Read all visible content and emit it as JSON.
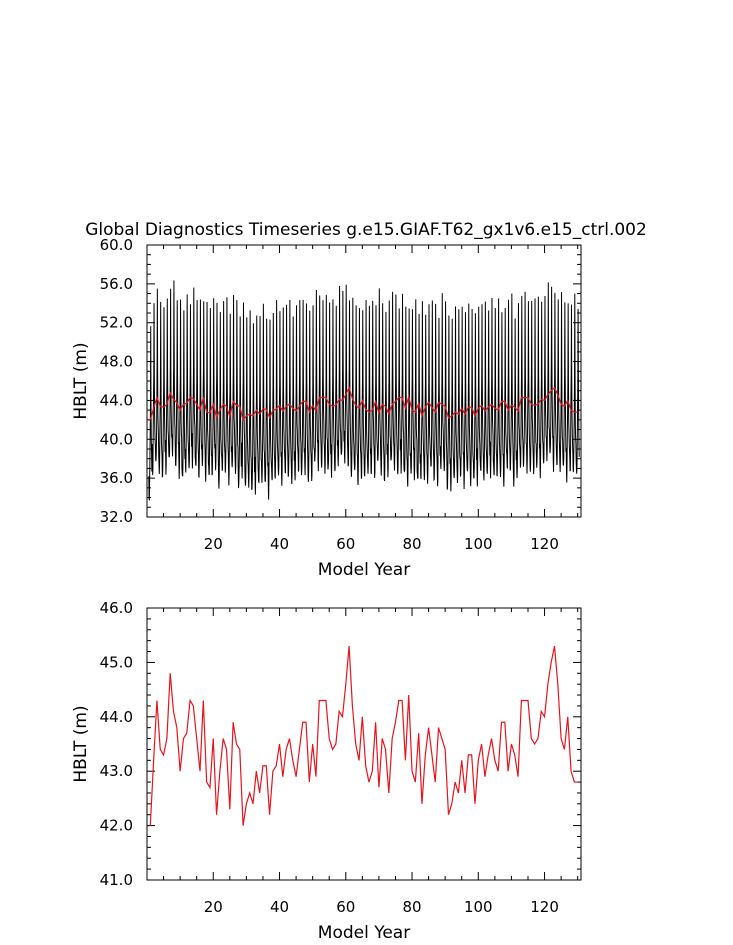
{
  "figure_title": "Global Diagnostics Timeseries g.e15.GIAF.T62_gx1v6.e15_ctrl.002",
  "colors": {
    "monthly": "#000000",
    "annual": "#e8141c",
    "axis": "#000000"
  },
  "chart_data": [
    {
      "type": "line",
      "title": "Global Diagnostics Timeseries g.e15.GIAF.T62_gx1v6.e15_ctrl.002",
      "xlabel": "Model Year",
      "ylabel": "HBLT (m)",
      "xlim": [
        0,
        131
      ],
      "ylim": [
        32.0,
        60.0
      ],
      "xticks": [
        20,
        40,
        60,
        80,
        100,
        120
      ],
      "xtick_labels": [
        "20",
        "40",
        "60",
        "80",
        "100",
        "120"
      ],
      "yticks": [
        32.0,
        36.0,
        40.0,
        44.0,
        48.0,
        52.0,
        56.0,
        60.0
      ],
      "ytick_labels": [
        "32.0",
        "36.0",
        "40.0",
        "44.0",
        "48.0",
        "52.0",
        "56.0",
        "60.0"
      ],
      "grid": false,
      "series": [
        {
          "color": "#000000",
          "style": "monthly",
          "months_per_year": 12,
          "seasonal_cycle": [
            38.0,
            36.5,
            35.8,
            36.8,
            39.5,
            42.5,
            45.5,
            53.5,
            46.0,
            41.5,
            39.8,
            38.6
          ],
          "annual_offsets": [
            -1.8,
            1.0,
            1.4,
            0.6,
            0.4,
            1.2,
            1.6,
            2.6,
            1.4,
            0.8,
            -0.4,
            1.0,
            1.2,
            1.8,
            0.8,
            0.4,
            1.6,
            0.2,
            0.0,
            0.6,
            1.4,
            -0.8,
            0.6,
            0.9,
            0.1,
            1.1,
            0.5,
            -0.8,
            1.0,
            -1.0,
            -0.8,
            -1.2,
            -0.6,
            -0.7,
            -0.3,
            -0.5,
            -1.2,
            -0.3,
            0.0,
            0.4,
            0.0,
            0.5,
            0.1,
            -0.2,
            0.3,
            0.8,
            0.3,
            1.0,
            -0.1,
            0.0,
            1.6,
            1.6,
            1.2,
            0.8,
            0.6,
            1.0,
            0.8,
            1.5,
            2.0,
            2.4,
            1.4,
            0.2,
            0.6,
            0.0,
            0.3,
            0.0,
            0.5,
            0.9,
            0.6,
            1.4,
            0.6,
            0.0,
            0.8,
            1.3,
            1.3,
            0.6,
            1.2,
            0.0,
            -0.3,
            0.7,
            0.4,
            -0.6,
            0.4,
            0.2,
            -0.2,
            0.8,
            0.2,
            -0.2,
            1.0,
            0.6,
            -0.8,
            -0.5,
            -0.2,
            -0.4,
            0.4,
            -0.1,
            0.3,
            -0.6,
            0.0,
            0.2,
            0.4,
            0.0,
            0.5,
            0.9,
            0.1,
            0.3,
            0.4,
            -0.2,
            0.9,
            0.9,
            -0.3,
            0.4,
            1.1,
            1.3,
            1.3,
            0.8,
            0.6,
            1.1,
            1.0,
            1.5,
            2.0,
            2.4,
            1.7,
            1.3,
            0.8,
            1.0,
            0.5,
            0.8,
            0.6,
            0.4
          ]
        },
        {
          "color": "#e8141c",
          "style": "annual-mean",
          "x": [
            1,
            2,
            3,
            4,
            5,
            6,
            7,
            8,
            9,
            10,
            11,
            12,
            13,
            14,
            15,
            16,
            17,
            18,
            19,
            20,
            21,
            22,
            23,
            24,
            25,
            26,
            27,
            28,
            29,
            30,
            31,
            32,
            33,
            34,
            35,
            36,
            37,
            38,
            39,
            40,
            41,
            42,
            43,
            44,
            45,
            46,
            47,
            48,
            49,
            50,
            51,
            52,
            53,
            54,
            55,
            56,
            57,
            58,
            59,
            60,
            61,
            62,
            63,
            64,
            65,
            66,
            67,
            68,
            69,
            70,
            71,
            72,
            73,
            74,
            75,
            76,
            77,
            78,
            79,
            80,
            81,
            82,
            83,
            84,
            85,
            86,
            87,
            88,
            89,
            90,
            91,
            92,
            93,
            94,
            95,
            96,
            97,
            98,
            99,
            100,
            101,
            102,
            103,
            104,
            105,
            106,
            107,
            108,
            109,
            110,
            111,
            112,
            113,
            114,
            115,
            116,
            117,
            118,
            119,
            120,
            121,
            122,
            123,
            124,
            125,
            126,
            127,
            128,
            129,
            130
          ],
          "y": [
            42.0,
            43.2,
            44.3,
            43.4,
            43.3,
            43.6,
            44.8,
            44.1,
            43.8,
            43.0,
            43.6,
            43.7,
            44.3,
            44.2,
            43.6,
            43.0,
            44.3,
            42.8,
            42.7,
            43.6,
            42.2,
            43.0,
            43.6,
            43.4,
            42.3,
            43.9,
            43.5,
            43.4,
            42.0,
            42.4,
            42.6,
            42.4,
            43.0,
            42.6,
            43.1,
            43.1,
            42.2,
            43.0,
            43.1,
            43.5,
            42.9,
            43.4,
            43.6,
            43.2,
            42.9,
            43.4,
            43.9,
            43.9,
            42.8,
            43.5,
            42.9,
            44.3,
            44.3,
            44.3,
            43.6,
            43.4,
            43.5,
            44.1,
            44.0,
            44.6,
            45.3,
            44.2,
            43.5,
            43.2,
            44.0,
            43.1,
            42.8,
            43.0,
            43.9,
            42.7,
            43.6,
            43.4,
            42.6,
            43.6,
            43.9,
            44.3,
            44.3,
            43.2,
            44.4,
            43.0,
            42.8,
            43.7,
            42.4,
            43.3,
            43.8,
            43.3,
            42.8,
            43.8,
            43.6,
            43.4,
            42.2,
            42.4,
            42.8,
            42.6,
            43.2,
            42.6,
            43.3,
            43.3,
            42.4,
            43.2,
            43.5,
            42.9,
            43.3,
            43.6,
            43.2,
            43.0,
            43.9,
            43.9,
            43.0,
            43.5,
            43.3,
            42.9,
            44.3,
            44.3,
            44.3,
            43.6,
            43.5,
            43.6,
            44.1,
            44.0,
            44.6,
            45.0,
            45.3,
            44.6,
            43.6,
            43.4,
            44.0,
            43.0,
            42.8,
            42.8
          ]
        }
      ]
    },
    {
      "type": "line",
      "title": "",
      "xlabel": "Model Year",
      "ylabel": "HBLT (m)",
      "xlim": [
        0,
        131
      ],
      "ylim": [
        41.0,
        46.0
      ],
      "xticks": [
        20,
        40,
        60,
        80,
        100,
        120
      ],
      "xtick_labels": [
        "20",
        "40",
        "60",
        "80",
        "100",
        "120"
      ],
      "yticks": [
        41.0,
        42.0,
        43.0,
        44.0,
        45.0,
        46.0
      ],
      "ytick_labels": [
        "41.0",
        "42.0",
        "43.0",
        "44.0",
        "45.0",
        "46.0"
      ],
      "grid": false,
      "series": [
        {
          "color": "#e8141c",
          "style": "annual-mean",
          "x": [
            1,
            2,
            3,
            4,
            5,
            6,
            7,
            8,
            9,
            10,
            11,
            12,
            13,
            14,
            15,
            16,
            17,
            18,
            19,
            20,
            21,
            22,
            23,
            24,
            25,
            26,
            27,
            28,
            29,
            30,
            31,
            32,
            33,
            34,
            35,
            36,
            37,
            38,
            39,
            40,
            41,
            42,
            43,
            44,
            45,
            46,
            47,
            48,
            49,
            50,
            51,
            52,
            53,
            54,
            55,
            56,
            57,
            58,
            59,
            60,
            61,
            62,
            63,
            64,
            65,
            66,
            67,
            68,
            69,
            70,
            71,
            72,
            73,
            74,
            75,
            76,
            77,
            78,
            79,
            80,
            81,
            82,
            83,
            84,
            85,
            86,
            87,
            88,
            89,
            90,
            91,
            92,
            93,
            94,
            95,
            96,
            97,
            98,
            99,
            100,
            101,
            102,
            103,
            104,
            105,
            106,
            107,
            108,
            109,
            110,
            111,
            112,
            113,
            114,
            115,
            116,
            117,
            118,
            119,
            120,
            121,
            122,
            123,
            124,
            125,
            126,
            127,
            128,
            129,
            130
          ],
          "y": [
            42.0,
            43.2,
            44.3,
            43.4,
            43.3,
            43.6,
            44.8,
            44.1,
            43.8,
            43.0,
            43.6,
            43.7,
            44.3,
            44.2,
            43.6,
            43.0,
            44.3,
            42.8,
            42.7,
            43.6,
            42.2,
            43.0,
            43.6,
            43.4,
            42.3,
            43.9,
            43.5,
            43.4,
            42.0,
            42.4,
            42.6,
            42.4,
            43.0,
            42.6,
            43.1,
            43.1,
            42.2,
            43.0,
            43.1,
            43.5,
            42.9,
            43.4,
            43.6,
            43.2,
            42.9,
            43.4,
            43.9,
            43.9,
            42.8,
            43.5,
            42.9,
            44.3,
            44.3,
            44.3,
            43.6,
            43.4,
            43.5,
            44.1,
            44.0,
            44.6,
            45.3,
            44.2,
            43.5,
            43.2,
            44.0,
            43.1,
            42.8,
            43.0,
            43.9,
            42.7,
            43.6,
            43.4,
            42.6,
            43.6,
            43.9,
            44.3,
            44.3,
            43.2,
            44.4,
            43.0,
            42.8,
            43.7,
            42.4,
            43.3,
            43.8,
            43.3,
            42.8,
            43.8,
            43.6,
            43.4,
            42.2,
            42.4,
            42.8,
            42.6,
            43.2,
            42.6,
            43.3,
            43.3,
            42.4,
            43.2,
            43.5,
            42.9,
            43.3,
            43.6,
            43.2,
            43.0,
            43.9,
            43.9,
            43.0,
            43.5,
            43.3,
            42.9,
            44.3,
            44.3,
            44.3,
            43.6,
            43.5,
            43.6,
            44.1,
            44.0,
            44.6,
            45.0,
            45.3,
            44.6,
            43.6,
            43.4,
            44.0,
            43.0,
            42.8,
            42.8
          ]
        }
      ]
    }
  ]
}
